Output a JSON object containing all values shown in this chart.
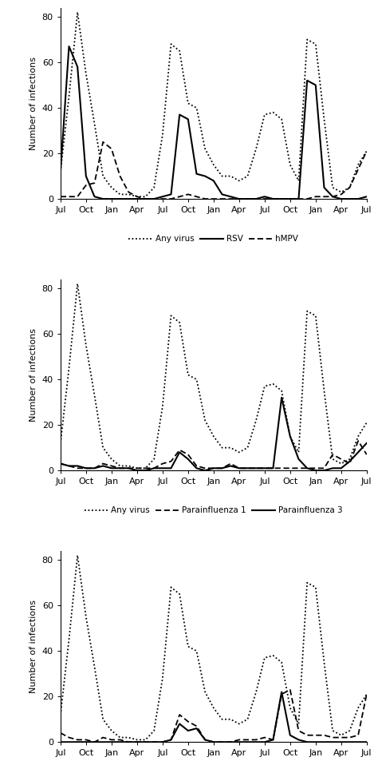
{
  "x_labels": [
    "Jul",
    "Oct",
    "Jan",
    "Apr",
    "Jul",
    "Oct",
    "Jan",
    "Apr",
    "Jul",
    "Oct",
    "Jan",
    "Apr",
    "Jul"
  ],
  "n_months": 37,
  "tick_positions": [
    0,
    3,
    6,
    9,
    12,
    15,
    18,
    21,
    24,
    27,
    30,
    33,
    36
  ],
  "any_virus": [
    12,
    45,
    82,
    55,
    33,
    10,
    5,
    2,
    2,
    1,
    1,
    5,
    28,
    68,
    65,
    42,
    40,
    22,
    15,
    10,
    10,
    8,
    10,
    22,
    37,
    38,
    35,
    15,
    8,
    70,
    68,
    35,
    5,
    3,
    5,
    15,
    21
  ],
  "panel1": {
    "RSV": [
      12,
      67,
      58,
      10,
      1,
      0,
      0,
      0,
      0,
      0,
      0,
      0,
      1,
      2,
      37,
      35,
      11,
      10,
      8,
      2,
      1,
      0,
      0,
      0,
      1,
      0,
      0,
      0,
      0,
      52,
      50,
      5,
      1,
      0,
      0,
      0,
      1
    ],
    "hMPV": [
      1,
      1,
      1,
      6,
      7,
      25,
      22,
      10,
      3,
      1,
      0,
      0,
      0,
      0,
      1,
      2,
      1,
      0,
      0,
      0,
      0,
      0,
      0,
      0,
      0,
      0,
      0,
      0,
      0,
      0,
      1,
      1,
      1,
      2,
      5,
      13,
      21
    ]
  },
  "panel2": {
    "Para1": [
      3,
      2,
      1,
      1,
      1,
      3,
      2,
      1,
      1,
      1,
      1,
      1,
      3,
      4,
      9,
      7,
      2,
      1,
      1,
      1,
      3,
      1,
      1,
      1,
      1,
      1,
      1,
      1,
      1,
      1,
      1,
      1,
      7,
      5,
      3,
      13,
      7
    ],
    "Para3": [
      3,
      2,
      2,
      1,
      1,
      2,
      1,
      1,
      1,
      0,
      0,
      1,
      1,
      1,
      8,
      5,
      1,
      0,
      1,
      1,
      2,
      1,
      1,
      1,
      1,
      1,
      32,
      15,
      5,
      1,
      0,
      0,
      1,
      1,
      4,
      8,
      12
    ]
  },
  "panel3": {
    "InflA": [
      4,
      2,
      1,
      1,
      0,
      2,
      1,
      1,
      0,
      0,
      0,
      0,
      0,
      1,
      12,
      9,
      7,
      1,
      0,
      0,
      0,
      1,
      1,
      1,
      2,
      1,
      21,
      23,
      5,
      3,
      3,
      3,
      2,
      2,
      2,
      3,
      21
    ],
    "InflB": [
      0,
      0,
      0,
      0,
      0,
      0,
      0,
      0,
      0,
      0,
      0,
      0,
      0,
      1,
      8,
      5,
      6,
      1,
      0,
      0,
      0,
      0,
      0,
      0,
      0,
      1,
      22,
      3,
      1,
      0,
      0,
      0,
      0,
      0,
      0,
      0,
      0
    ]
  },
  "ylabel": "Number of infections",
  "ylim": [
    0,
    84
  ],
  "yticks": [
    0,
    20,
    40,
    60,
    80
  ],
  "background_color": "#ffffff",
  "legend_fontsize": 7.5,
  "tick_fontsize": 8,
  "ylabel_fontsize": 8
}
